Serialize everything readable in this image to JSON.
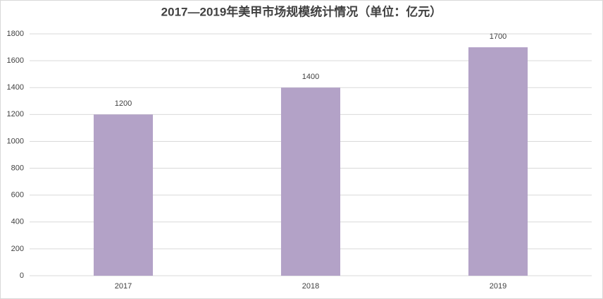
{
  "chart_data": {
    "type": "bar",
    "title": "2017—2019年美甲市场规模统计情况（单位：亿元）",
    "categories": [
      "2017",
      "2018",
      "2019"
    ],
    "values": [
      1200,
      1400,
      1700
    ],
    "color": "#b3a2c7",
    "ylim": [
      0,
      1800
    ],
    "yticks": [
      0,
      200,
      400,
      600,
      800,
      1000,
      1200,
      1400,
      1600,
      1800
    ],
    "grid": true,
    "data_labels": true
  }
}
